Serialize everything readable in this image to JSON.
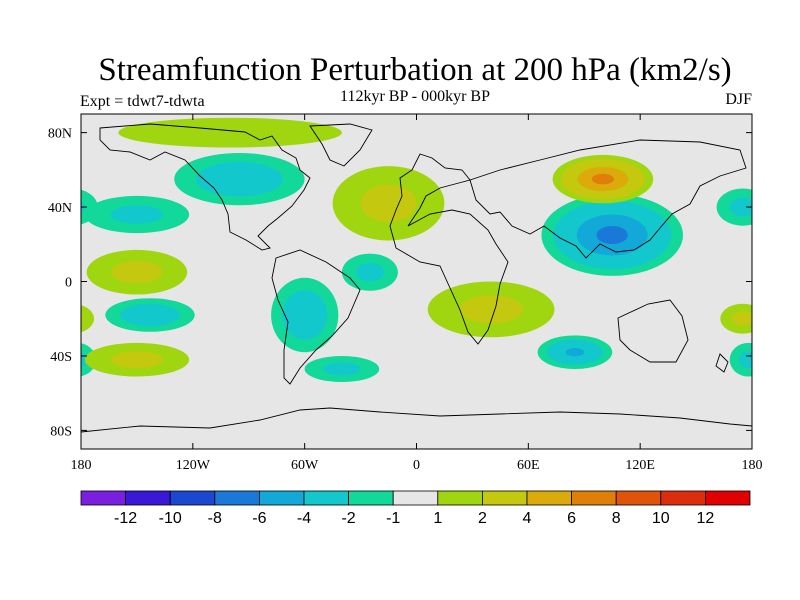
{
  "title": "Streamfunction Perturbation at 200 hPa (km2/s)",
  "subtitle": "112kyr BP - 000kyr BP",
  "left_label": "Expt = tdwt7-tdwta",
  "right_label": "DJF",
  "axes": {
    "lat_ticks": [
      {
        "lat": 80,
        "label": "80N"
      },
      {
        "lat": 40,
        "label": "40N"
      },
      {
        "lat": 0,
        "label": "0"
      },
      {
        "lat": -40,
        "label": "40S"
      },
      {
        "lat": -80,
        "label": "80S"
      }
    ],
    "lon_ticks": [
      {
        "lon": -180,
        "label": "180"
      },
      {
        "lon": -120,
        "label": "120W"
      },
      {
        "lon": -60,
        "label": "60W"
      },
      {
        "lon": 0,
        "label": "0"
      },
      {
        "lon": 60,
        "label": "60E"
      },
      {
        "lon": 120,
        "label": "120E"
      },
      {
        "lon": 180,
        "label": "180"
      }
    ],
    "lon_range": [
      -180,
      180
    ],
    "lat_range": [
      -90,
      90
    ]
  },
  "colorbar": {
    "labels": [
      "-12",
      "-10",
      "-8",
      "-6",
      "-4",
      "-2",
      "-1",
      "1",
      "2",
      "4",
      "6",
      "8",
      "10",
      "12"
    ],
    "colors": [
      "#7a1ee0",
      "#3a18d8",
      "#1a48d0",
      "#1a78d8",
      "#12a8d8",
      "#12c8cc",
      "#12d89a",
      "#e6e6e6",
      "#a0d610",
      "#c4c80e",
      "#dcaa0a",
      "#e07e0a",
      "#e0540a",
      "#dc2e0c",
      "#e00000"
    ]
  },
  "chart_data": {
    "type": "heatmap",
    "title": "Streamfunction Perturbation at 200 hPa (km2/s)",
    "subtitle": "112kyr BP - 000kyr BP",
    "variable": "streamfunction perturbation",
    "units": "km2/s",
    "level": "200 hPa",
    "season": "DJF",
    "experiment": "tdwt7-tdwta",
    "contour_levels": [
      -12,
      -10,
      -8,
      -6,
      -4,
      -2,
      -1,
      1,
      2,
      4,
      6,
      8,
      10,
      12
    ],
    "features": [
      {
        "name": "negative centre China / NW Pacific",
        "lon": 105,
        "lat": 25,
        "value": -6,
        "rx": 38,
        "ry": 22
      },
      {
        "name": "negative south Indian Ocean",
        "lon": 85,
        "lat": -38,
        "value": -4,
        "rx": 20,
        "ry": 9
      },
      {
        "name": "negative North America",
        "lon": -95,
        "lat": 55,
        "value": -3,
        "rx": 35,
        "ry": 14
      },
      {
        "name": "negative central N Pacific",
        "lon": -150,
        "lat": 36,
        "value": -2,
        "rx": 28,
        "ry": 10
      },
      {
        "name": "negative South America",
        "lon": -60,
        "lat": -18,
        "value": -3,
        "rx": 18,
        "ry": 20
      },
      {
        "name": "negative subtropical S Pacific",
        "lon": -143,
        "lat": -18,
        "value": -3,
        "rx": 24,
        "ry": 9
      },
      {
        "name": "negative west Pacific (edge)",
        "lon": 175,
        "lat": 40,
        "value": -2,
        "rx": 14,
        "ry": 10
      },
      {
        "name": "negative tropical Atlantic",
        "lon": -25,
        "lat": 5,
        "value": -2,
        "rx": 15,
        "ry": 10
      },
      {
        "name": "negative S Atlantic",
        "lon": -40,
        "lat": -47,
        "value": -2,
        "rx": 20,
        "ry": 7
      },
      {
        "name": "negative east Pacific edge",
        "lon": 178,
        "lat": -42,
        "value": -2,
        "rx": 10,
        "ry": 9
      },
      {
        "name": "positive N Pacific / Siberia",
        "lon": 100,
        "lat": 55,
        "value": 6,
        "rx": 27,
        "ry": 13
      },
      {
        "name": "positive S Indian Ocean",
        "lon": 40,
        "lat": -15,
        "value": 2,
        "rx": 34,
        "ry": 15
      },
      {
        "name": "positive Atlantic-Europe",
        "lon": -15,
        "lat": 42,
        "value": 2,
        "rx": 30,
        "ry": 20
      },
      {
        "name": "positive subtropical N Pacific",
        "lon": -150,
        "lat": 5,
        "value": 2,
        "rx": 27,
        "ry": 12
      },
      {
        "name": "positive S Pacific",
        "lon": -150,
        "lat": -42,
        "value": 2,
        "rx": 28,
        "ry": 9
      },
      {
        "name": "positive Arctic",
        "lon": -100,
        "lat": 80,
        "value": 1,
        "rx": 60,
        "ry": 8
      },
      {
        "name": "positive SE Pacific edge",
        "lon": 175,
        "lat": -20,
        "value": 2,
        "rx": 12,
        "ry": 8
      }
    ]
  }
}
